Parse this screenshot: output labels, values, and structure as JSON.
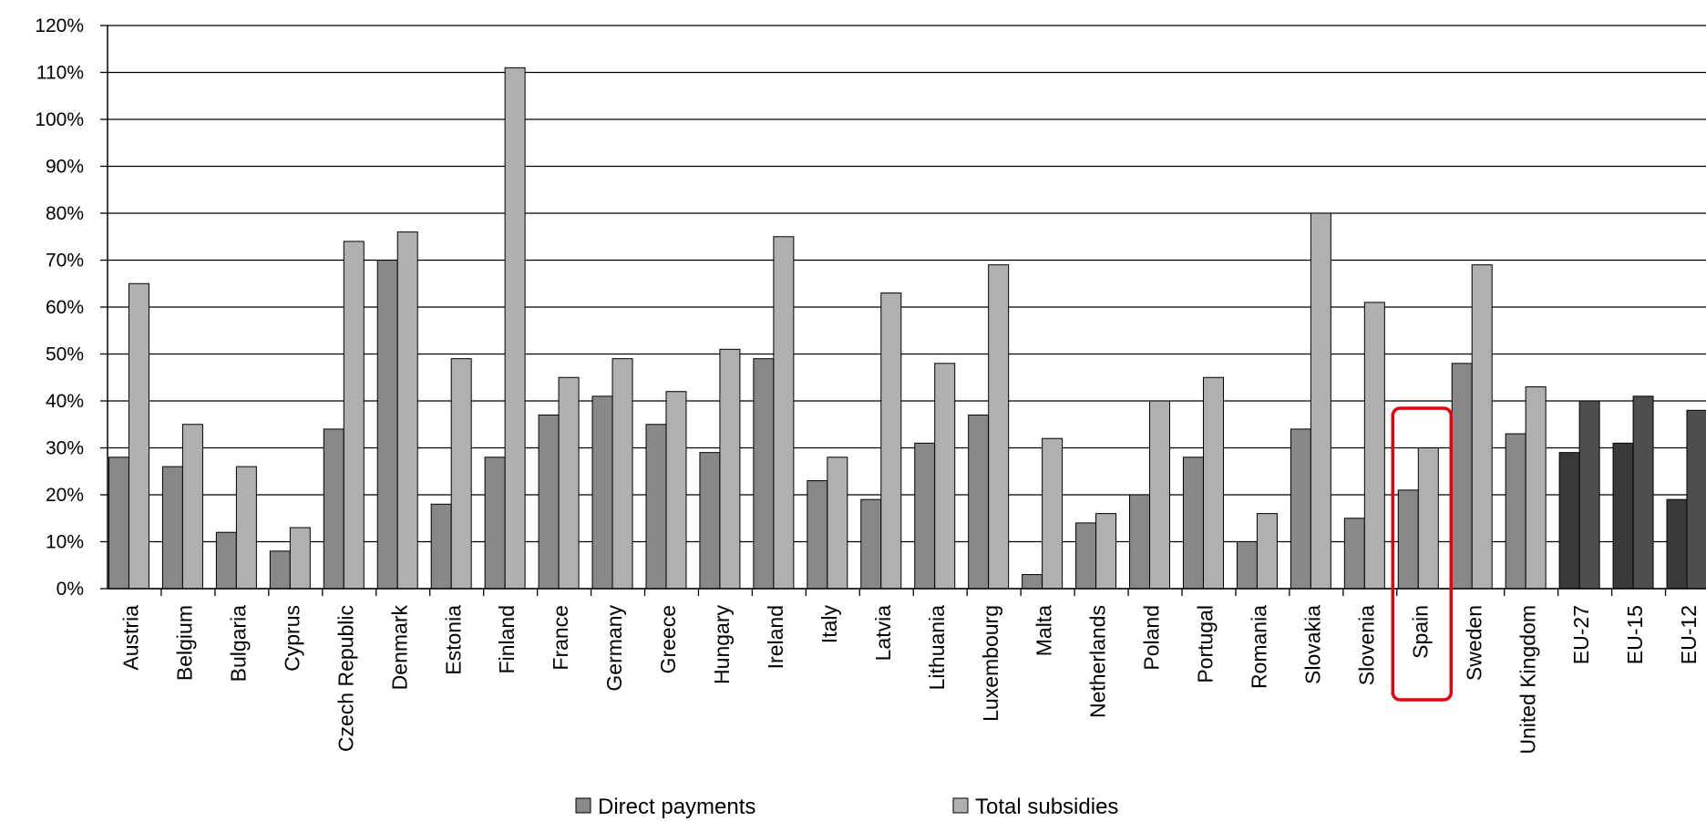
{
  "chart_data": {
    "type": "bar",
    "title": "",
    "xlabel": "",
    "ylabel": "",
    "ylim": [
      0,
      120
    ],
    "yticks": [
      "0%",
      "10%",
      "20%",
      "30%",
      "40%",
      "50%",
      "60%",
      "70%",
      "80%",
      "90%",
      "100%",
      "110%",
      "120%"
    ],
    "grid": true,
    "legend_position": "bottom",
    "categories": [
      "Austria",
      "Belgium",
      "Bulgaria",
      "Cyprus",
      "Czech Republic",
      "Denmark",
      "Estonia",
      "Finland",
      "France",
      "Germany",
      "Greece",
      "Hungary",
      "Ireland",
      "Italy",
      "Latvia",
      "Lithuania",
      "Luxembourg",
      "Malta",
      "Netherlands",
      "Poland",
      "Portugal",
      "Romania",
      "Slovakia",
      "Slovenia",
      "Spain",
      "Sweden",
      "United Kingdom",
      "EU-27",
      "EU-15",
      "EU-12"
    ],
    "series": [
      {
        "name": "Direct payments",
        "color": "#888888",
        "aggregate_color": "#3a3a3a",
        "values": [
          28,
          26,
          12,
          8,
          34,
          70,
          18,
          28,
          37,
          41,
          35,
          29,
          49,
          23,
          19,
          31,
          37,
          3,
          14,
          20,
          28,
          10,
          34,
          15,
          21,
          48,
          33,
          29,
          31,
          19
        ]
      },
      {
        "name": "Total subsidies",
        "color": "#b0b0b0",
        "aggregate_color": "#4e4e4e",
        "values": [
          65,
          35,
          26,
          13,
          74,
          76,
          49,
          111,
          45,
          49,
          42,
          51,
          75,
          28,
          63,
          48,
          69,
          32,
          16,
          40,
          45,
          16,
          80,
          61,
          30,
          69,
          43,
          40,
          41,
          38
        ]
      }
    ],
    "aggregate_categories": [
      "EU-27",
      "EU-15",
      "EU-12"
    ],
    "highlight": {
      "category": "Spain",
      "color": "#e8000d"
    }
  }
}
